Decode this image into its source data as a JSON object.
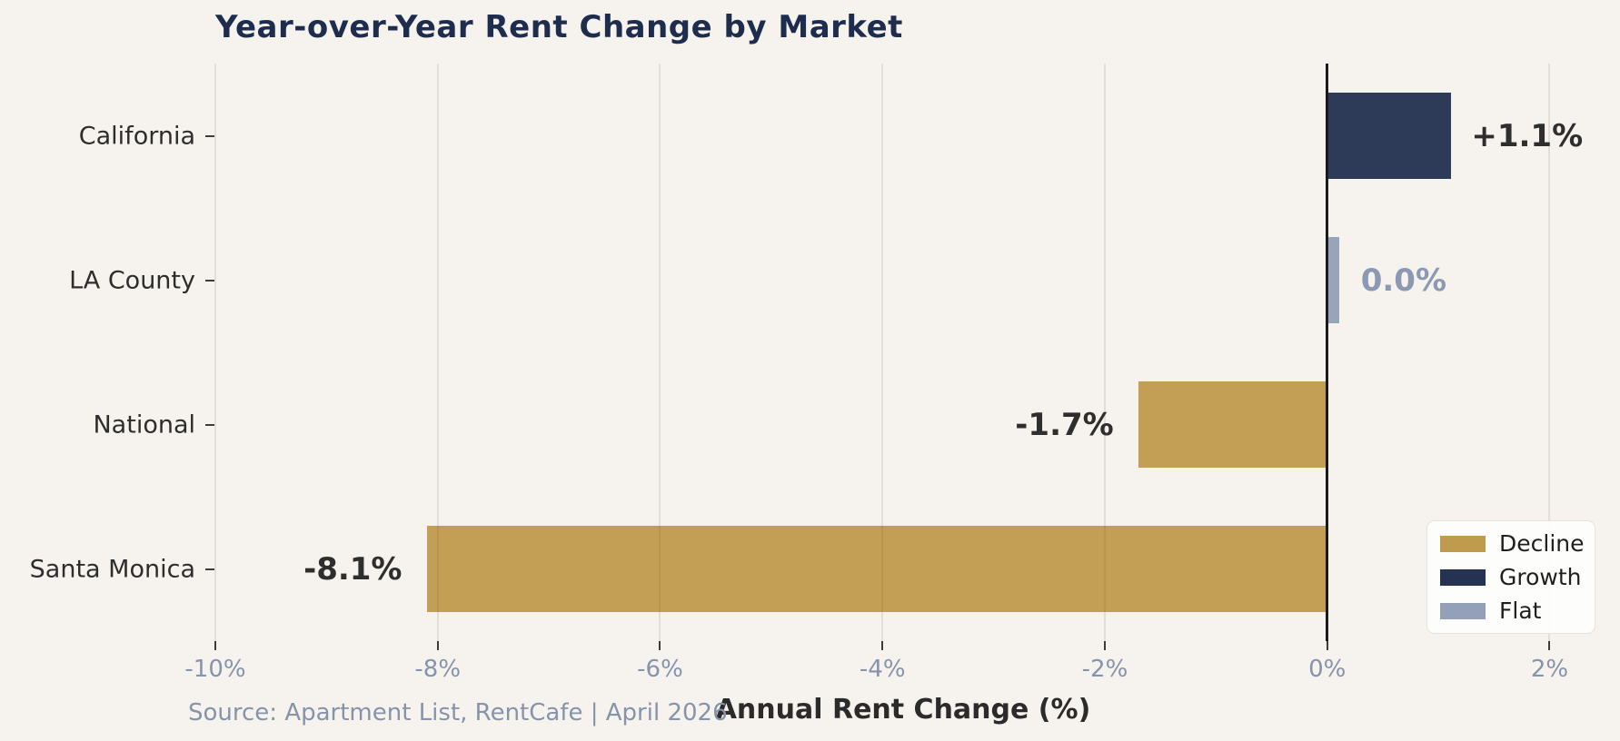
{
  "title": "Year-over-Year Rent Change by Market",
  "source": "Source: Apartment List, RentCafe  |  April 2026",
  "colors": {
    "background": "#f6f3ee",
    "title": "#1e2c4e",
    "decline": "#bf9b4e",
    "growth": "#243352",
    "flat": "#93a0b7",
    "axis_text": "#8593ac",
    "label_dark": "#2e2e2e",
    "label_flat": "#8b99b3",
    "zero_line": "#1a1a1a"
  },
  "legend": {
    "position": "lower right",
    "items": [
      {
        "label": "Decline",
        "color_key": "decline"
      },
      {
        "label": "Growth",
        "color_key": "growth"
      },
      {
        "label": "Flat",
        "color_key": "flat"
      }
    ]
  },
  "chart_data": {
    "type": "bar",
    "orientation": "horizontal",
    "title": "Year-over-Year Rent Change by Market",
    "xlabel": "Annual Rent Change (%)",
    "categories": [
      "California",
      "LA County",
      "National",
      "Santa Monica"
    ],
    "values": [
      1.1,
      0.0,
      -1.7,
      -8.1
    ],
    "bar_labels": [
      "+1.1%",
      "0.0%",
      "-1.7%",
      "-8.1%"
    ],
    "bar_color_keys": [
      "growth",
      "flat",
      "decline",
      "decline"
    ],
    "bar_label_color_keys": [
      "label_dark",
      "label_flat",
      "label_dark",
      "label_dark"
    ],
    "xlim": [
      -10,
      2.38
    ],
    "xticks": [
      {
        "value": -10,
        "label": "-10%"
      },
      {
        "value": -8,
        "label": "-8%"
      },
      {
        "value": -6,
        "label": "-6%"
      },
      {
        "value": -4,
        "label": "-4%"
      },
      {
        "value": -2,
        "label": "-2%"
      },
      {
        "value": 0,
        "label": "0%"
      },
      {
        "value": 2,
        "label": "2%"
      }
    ],
    "grid": true,
    "legend_position": "lower right"
  }
}
